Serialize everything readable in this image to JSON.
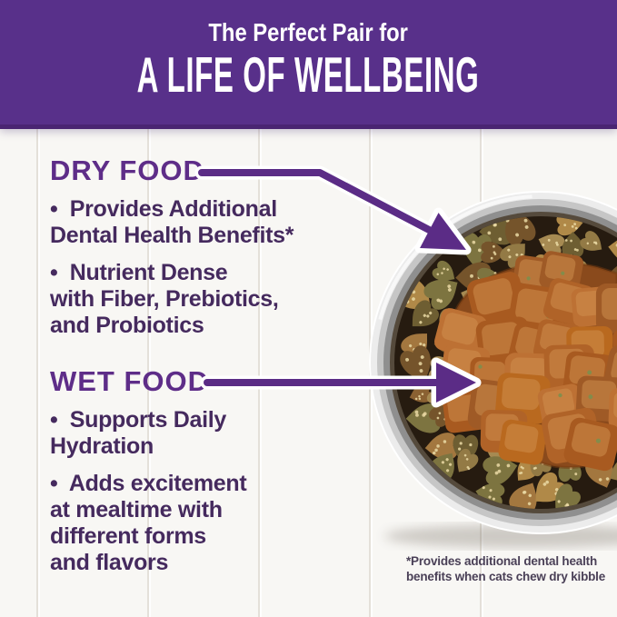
{
  "banner": {
    "subtitle": "The Perfect Pair for",
    "title": "A LIFE OF WELLBEING"
  },
  "sections": {
    "dry": {
      "heading": "DRY FOOD",
      "bullets": [
        {
          "lines": [
            "•  Provides Additional",
            "Dental Health Benefits*"
          ]
        },
        {
          "lines": [
            "•  Nutrient Dense",
            "with Fiber, Prebiotics,",
            "and Probiotics"
          ]
        }
      ]
    },
    "wet": {
      "heading": "WET FOOD",
      "bullets": [
        {
          "lines": [
            "•  Supports Daily",
            "Hydration"
          ]
        },
        {
          "lines": [
            "•  Adds excitement",
            "at mealtime with",
            "different forms",
            "and flavors"
          ]
        }
      ]
    }
  },
  "footnote": {
    "lines": [
      "*Provides additional dental health",
      "benefits when cats chew dry kibble"
    ]
  },
  "colors": {
    "banner_bg": "#58308a",
    "banner_border": "#4a2572",
    "heading_purple": "#5e2d88",
    "body_purple": "#452a5e",
    "arrow_purple": "#5b2c86",
    "footnote_color": "#4a4057",
    "background": "#f8f7f4",
    "plank_line": "#e4e0d9",
    "bowl_steel_light": "#ececec",
    "bowl_steel_mid": "#c6c6c6",
    "bowl_steel_dark": "#8f8f8f",
    "bowl_inner_shadow": "#554a3c",
    "food_bed": "#261b10",
    "kibble_speckle": "#ead9a4",
    "wet_gravy": "#8a4a1c",
    "wet_gravy_dark": "#73390f",
    "wet_highlight": "#d2914f",
    "herb_fleck": "#7c8f4e",
    "kibble_palette": [
      "#a3773f",
      "#8a6132",
      "#b08948",
      "#75542b",
      "#937a45",
      "#6e5e32",
      "#a68a52",
      "#7d7440"
    ],
    "wet_chunk_palette": [
      "#b06328",
      "#a85a20",
      "#bd7134",
      "#9f5a26",
      "#b9691f"
    ]
  }
}
